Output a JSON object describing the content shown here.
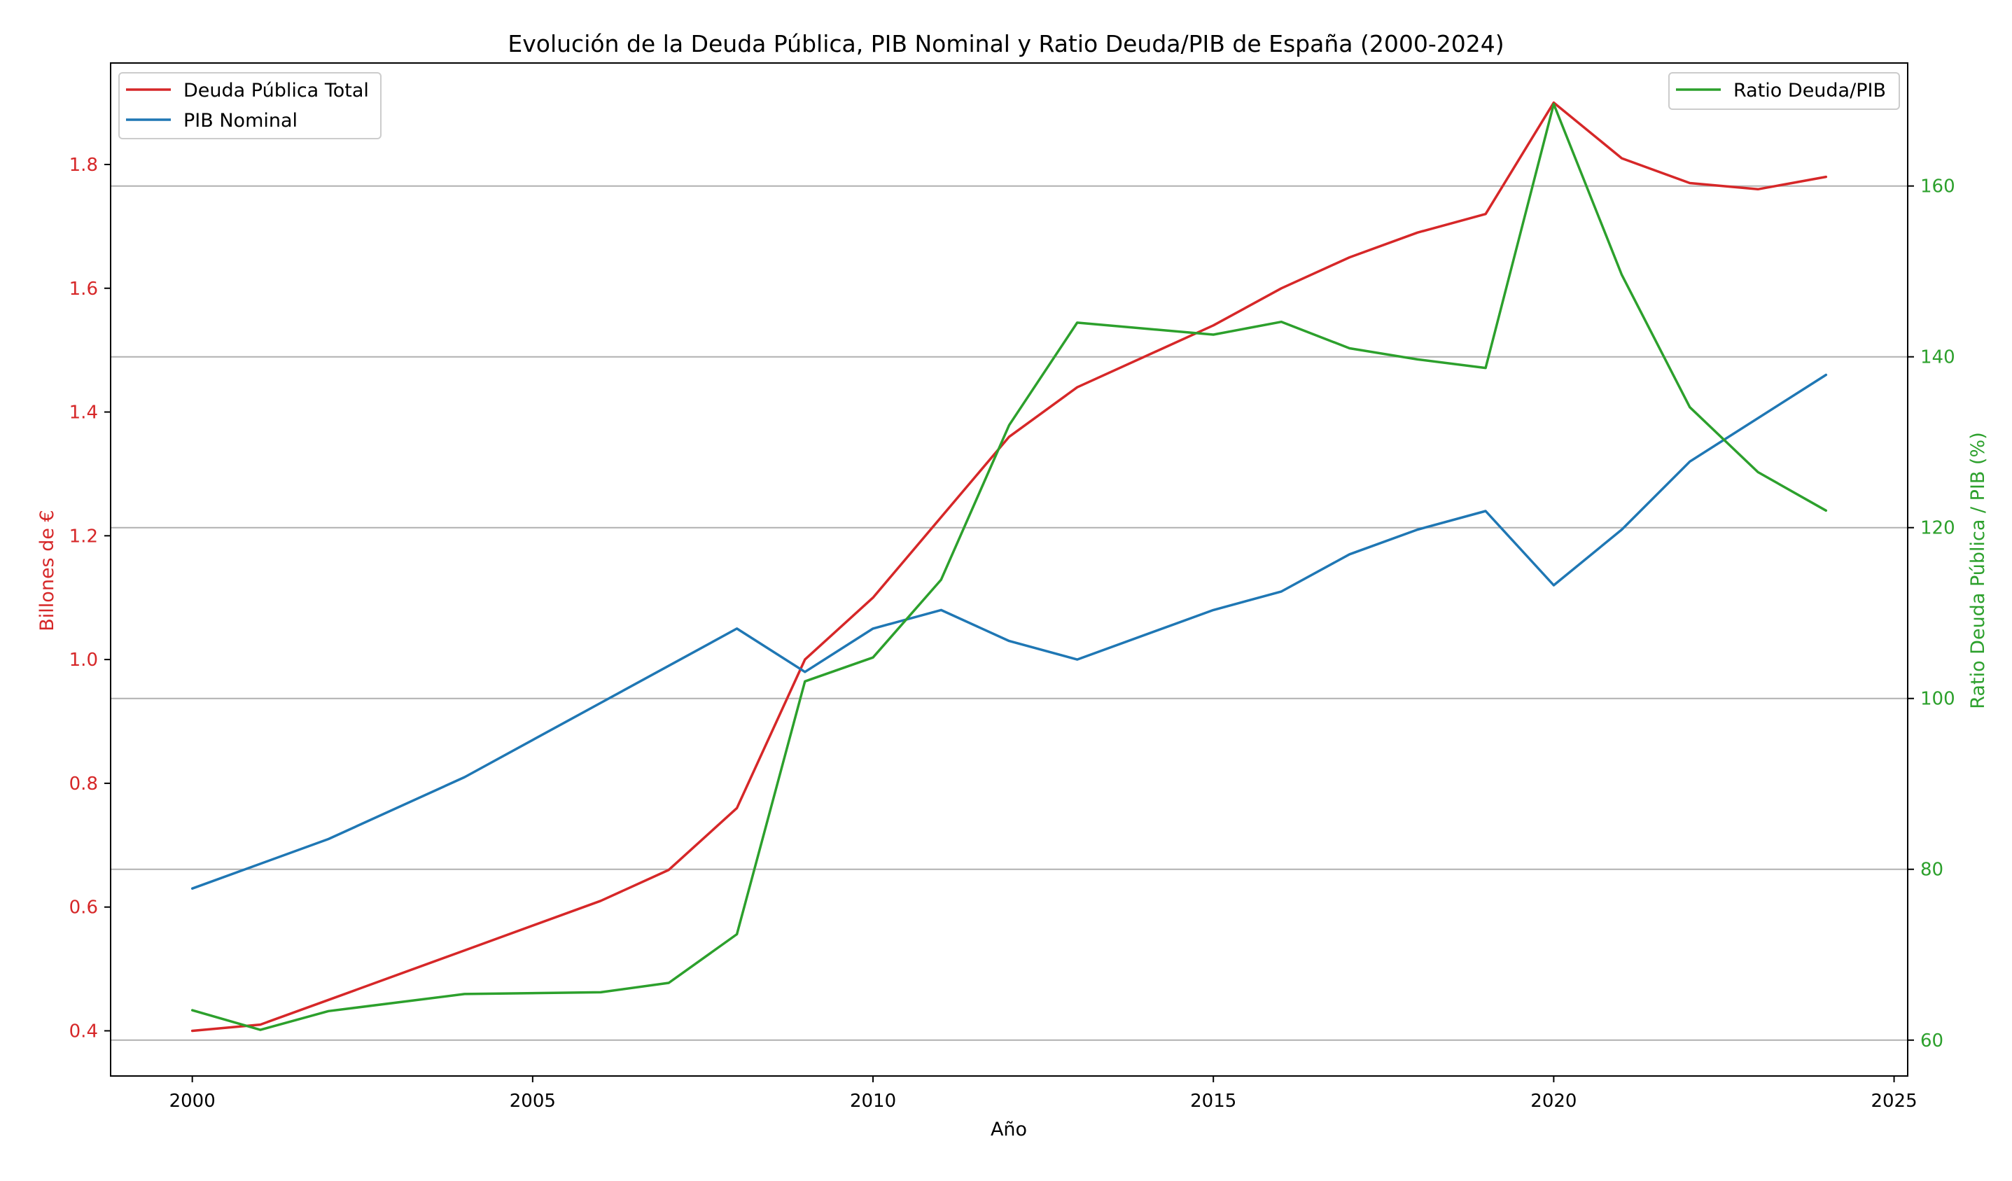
{
  "chart_data": {
    "type": "line",
    "title": "Evolución de la Deuda Pública, PIB Nominal y Ratio Deuda/PIB de España (2000-2024)",
    "xlabel": "Año",
    "ylabel_left": "Billones de €",
    "ylabel_right": "Ratio Deuda Pública / PIB (%)",
    "x": [
      2000,
      2001,
      2002,
      2004,
      2006,
      2007,
      2008,
      2009,
      2010,
      2011,
      2012,
      2013,
      2015,
      2016,
      2017,
      2018,
      2019,
      2020,
      2021,
      2022,
      2023,
      2024
    ],
    "xlim": [
      1998.8,
      2025.2
    ],
    "ylim_left": [
      0.327,
      1.964
    ],
    "ylim_right": [
      55.8,
      174.4
    ],
    "xticks": [
      2000,
      2005,
      2010,
      2015,
      2020,
      2025
    ],
    "xtick_labels": [
      "2000",
      "2005",
      "2010",
      "2015",
      "2020",
      "2025"
    ],
    "yticks_left": [
      0.4,
      0.6,
      0.8,
      1.0,
      1.2,
      1.4,
      1.6,
      1.8
    ],
    "ytick_labels_left": [
      "0.4",
      "0.6",
      "0.8",
      "1.0",
      "1.2",
      "1.4",
      "1.6",
      "1.8"
    ],
    "yticks_right": [
      60,
      80,
      100,
      120,
      140,
      160
    ],
    "ytick_labels_right": [
      "60",
      "80",
      "100",
      "120",
      "140",
      "160"
    ],
    "grid": "horizontal lines at right-axis ticks",
    "series": [
      {
        "name": "Deuda Pública Total",
        "axis": "left",
        "color": "#d62728",
        "points": [
          [
            2000,
            0.4
          ],
          [
            2001,
            0.41
          ],
          [
            2002,
            0.45
          ],
          [
            2004,
            0.53
          ],
          [
            2006,
            0.61
          ],
          [
            2007,
            0.66
          ],
          [
            2008,
            0.76
          ],
          [
            2009,
            1.0
          ],
          [
            2010,
            1.1
          ],
          [
            2011,
            1.23
          ],
          [
            2012,
            1.36
          ],
          [
            2013,
            1.44
          ],
          [
            2015,
            1.54
          ],
          [
            2016,
            1.6
          ],
          [
            2017,
            1.65
          ],
          [
            2018,
            1.69
          ],
          [
            2019,
            1.72
          ],
          [
            2020,
            1.9
          ],
          [
            2021,
            1.81
          ],
          [
            2022,
            1.77
          ],
          [
            2023,
            1.76
          ],
          [
            2024,
            1.78
          ]
        ]
      },
      {
        "name": "PIB Nominal",
        "axis": "left",
        "color": "#1f77b4",
        "points": [
          [
            2000,
            0.63
          ],
          [
            2002,
            0.71
          ],
          [
            2004,
            0.81
          ],
          [
            2006,
            0.93
          ],
          [
            2008,
            1.05
          ],
          [
            2009,
            0.98
          ],
          [
            2010,
            1.05
          ],
          [
            2011,
            1.08
          ],
          [
            2012,
            1.03
          ],
          [
            2013,
            1.0
          ],
          [
            2015,
            1.08
          ],
          [
            2016,
            1.11
          ],
          [
            2017,
            1.17
          ],
          [
            2018,
            1.21
          ],
          [
            2019,
            1.24
          ],
          [
            2020,
            1.12
          ],
          [
            2021,
            1.21
          ],
          [
            2022,
            1.32
          ],
          [
            2024,
            1.46
          ]
        ]
      },
      {
        "name": "Ratio Deuda/PIB",
        "axis": "right",
        "color": "#2ca02c",
        "points": [
          [
            2000,
            63.5
          ],
          [
            2001,
            61.2
          ],
          [
            2002,
            63.4
          ],
          [
            2004,
            65.4
          ],
          [
            2006,
            65.6
          ],
          [
            2007,
            66.7
          ],
          [
            2008,
            72.4
          ],
          [
            2009,
            102.0
          ],
          [
            2010,
            104.8
          ],
          [
            2011,
            113.9
          ],
          [
            2012,
            132.0
          ],
          [
            2013,
            144.0
          ],
          [
            2015,
            142.6
          ],
          [
            2016,
            144.1
          ],
          [
            2017,
            141.0
          ],
          [
            2018,
            139.7
          ],
          [
            2019,
            138.7
          ],
          [
            2020,
            169.6
          ],
          [
            2021,
            149.6
          ],
          [
            2022,
            134.1
          ],
          [
            2023,
            126.5
          ],
          [
            2024,
            122.0
          ]
        ]
      }
    ],
    "legend_left": {
      "placement": "top-left",
      "entries": [
        "Deuda Pública Total",
        "PIB Nominal"
      ]
    },
    "legend_right": {
      "placement": "top-right",
      "entries": [
        "Ratio Deuda/PIB"
      ]
    },
    "colors": {
      "left_axis": "#d62728",
      "right_axis": "#2ca02c",
      "grid": "#b0b0b0"
    }
  }
}
